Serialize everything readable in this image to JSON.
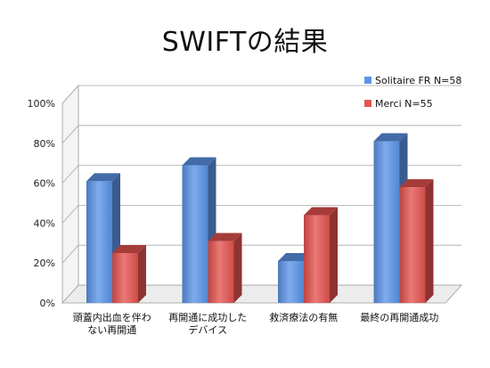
{
  "chart_data": {
    "type": "bar",
    "title": "SWIFTの結果",
    "categories": [
      [
        "頭蓋内出血を伴わ",
        "ない再開通"
      ],
      [
        "再開通に成功した",
        "デバイス"
      ],
      [
        "救済療法の有無"
      ],
      [
        "最終の再開通成功"
      ]
    ],
    "series": [
      {
        "name": "Solitaire FR N=58",
        "values": [
          61,
          69,
          21,
          81
        ],
        "color": "#5b95e8"
      },
      {
        "name": "Merci N=55",
        "values": [
          25,
          31,
          44,
          58
        ],
        "color": "#e5534f"
      }
    ],
    "ylim": [
      0,
      100
    ],
    "yticks": [
      "0%",
      "20%",
      "40%",
      "60%",
      "80%",
      "100%"
    ],
    "ytick_values": [
      0,
      20,
      40,
      60,
      80,
      100
    ],
    "grid": true,
    "legend_position": "top-right",
    "style": "3d-column"
  }
}
